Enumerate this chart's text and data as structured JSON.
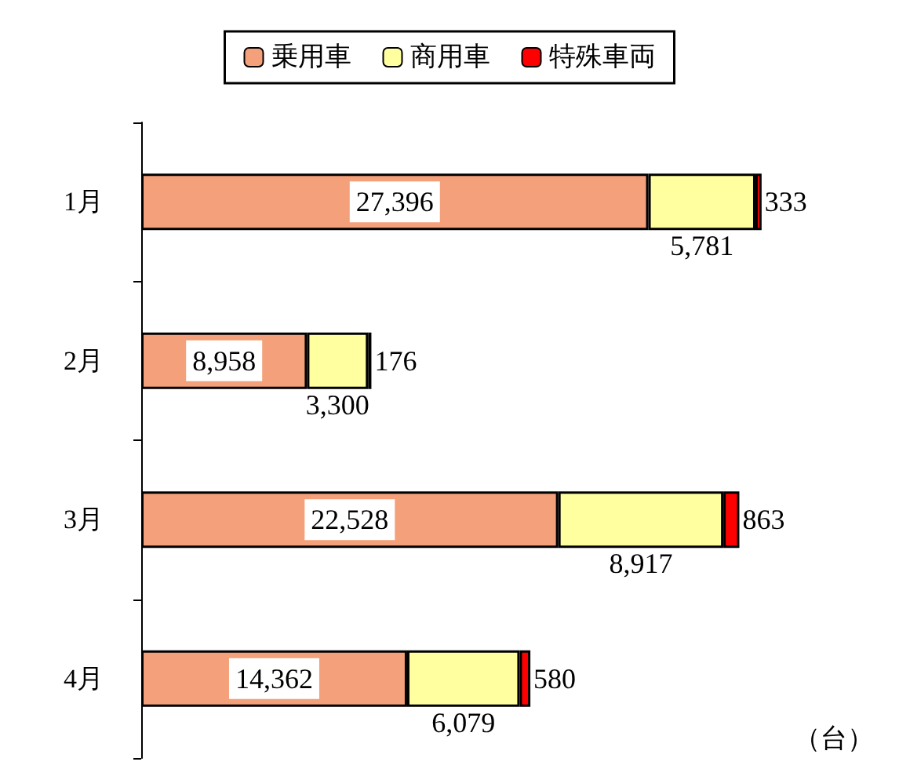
{
  "chart_data": {
    "type": "bar",
    "orientation": "horizontal",
    "stacked": true,
    "legend": "top",
    "categories": [
      "1月",
      "2月",
      "3月",
      "4月"
    ],
    "series": [
      {
        "name": "乗用車",
        "color": "#f4a07a",
        "values": [
          27396,
          8958,
          22528,
          14362
        ],
        "value_labels": [
          "27,396",
          "8,958",
          "22,528",
          "14,362"
        ]
      },
      {
        "name": "商用車",
        "color": "#ffffa0",
        "values": [
          5781,
          3300,
          8917,
          6079
        ],
        "value_labels": [
          "5,781",
          "3,300",
          "8,917",
          "6,079"
        ]
      },
      {
        "name": "特殊車両",
        "color": "#ff0000",
        "values": [
          333,
          176,
          863,
          580
        ],
        "value_labels": [
          "333",
          "176",
          "863",
          "580"
        ]
      }
    ],
    "annotations": [
      "（台）"
    ]
  }
}
